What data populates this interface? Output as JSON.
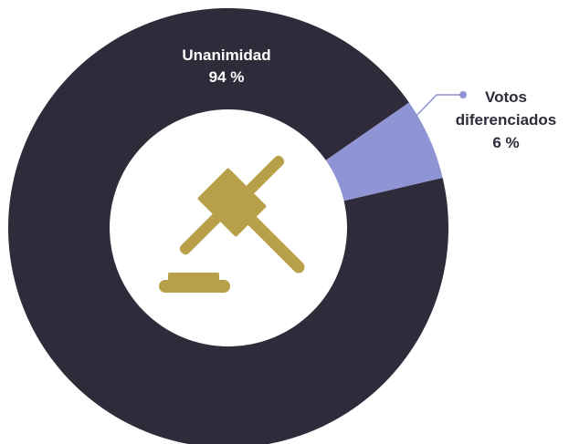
{
  "chart_data": {
    "type": "pie",
    "variant": "donut",
    "title": "",
    "slices": [
      {
        "label": "Unanimidad",
        "value": 94,
        "value_label": "94 %",
        "color": "#2f2b3a"
      },
      {
        "label": "Votos diferenciados",
        "label_lines": [
          "Votos",
          "diferenciados"
        ],
        "value": 6,
        "value_label": "6 %",
        "color": "#8f94d4"
      }
    ],
    "legend": "none",
    "center_icon": "gavel-icon",
    "icon_color": "#b89f4a",
    "leader_line_color": "#8f94d4"
  }
}
